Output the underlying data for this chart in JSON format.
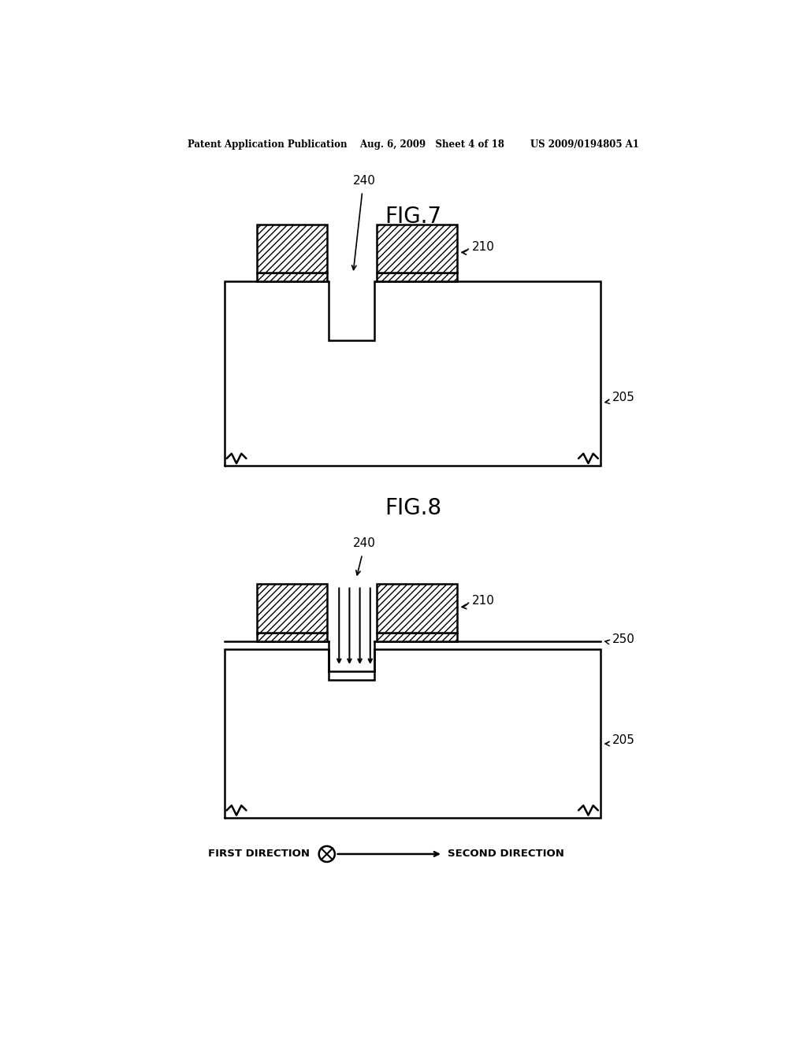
{
  "bg_color": "#ffffff",
  "lc": "#000000",
  "header": "Patent Application Publication    Aug. 6, 2009   Sheet 4 of 18        US 2009/0194805 A1",
  "fig7_title": "FIG.7",
  "fig8_title": "FIG.8",
  "dir1": "FIRST DIRECTION",
  "dir2": "SECOND DIRECTION",
  "lbl_240": "240",
  "lbl_210": "210",
  "lbl_205": "205",
  "lbl_250": "250"
}
